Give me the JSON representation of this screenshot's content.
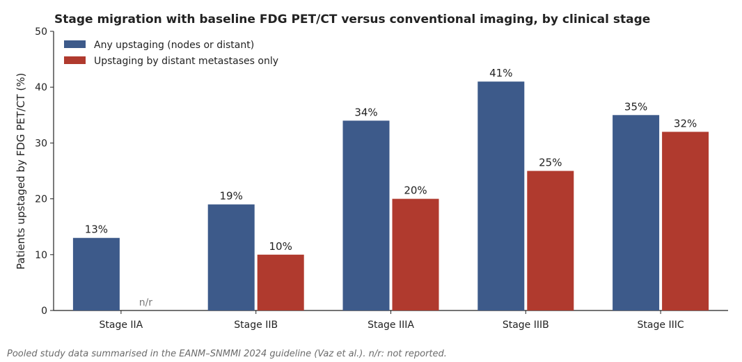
{
  "chart_data": {
    "type": "bar",
    "title": "Stage migration with baseline FDG PET/CT versus conventional imaging, by clinical stage",
    "xlabel": "",
    "ylabel": "Patients upstaged by FDG PET/CT (%)",
    "ylim": [
      0,
      50
    ],
    "yticks": [
      0,
      10,
      20,
      30,
      40,
      50
    ],
    "categories": [
      "Stage IIA",
      "Stage IIB",
      "Stage IIIA",
      "Stage IIIB",
      "Stage IIIC"
    ],
    "series": [
      {
        "name": "Any upstaging (nodes or distant)",
        "color": "#3d5a8a",
        "values": [
          13,
          19,
          34,
          41,
          35
        ],
        "labels": [
          "13%",
          "19%",
          "34%",
          "41%",
          "35%"
        ]
      },
      {
        "name": "Upstaging by distant metastases only",
        "color": "#b03a2e",
        "values": [
          null,
          10,
          20,
          25,
          32
        ],
        "labels": [
          "n/r",
          "10%",
          "20%",
          "25%",
          "32%"
        ]
      }
    ],
    "grid": false,
    "legend_position": "top-left"
  },
  "footnote": "Pooled study data summarised in the EANM–SNMMI 2024 guideline (Vaz et al.). n/r: not reported."
}
